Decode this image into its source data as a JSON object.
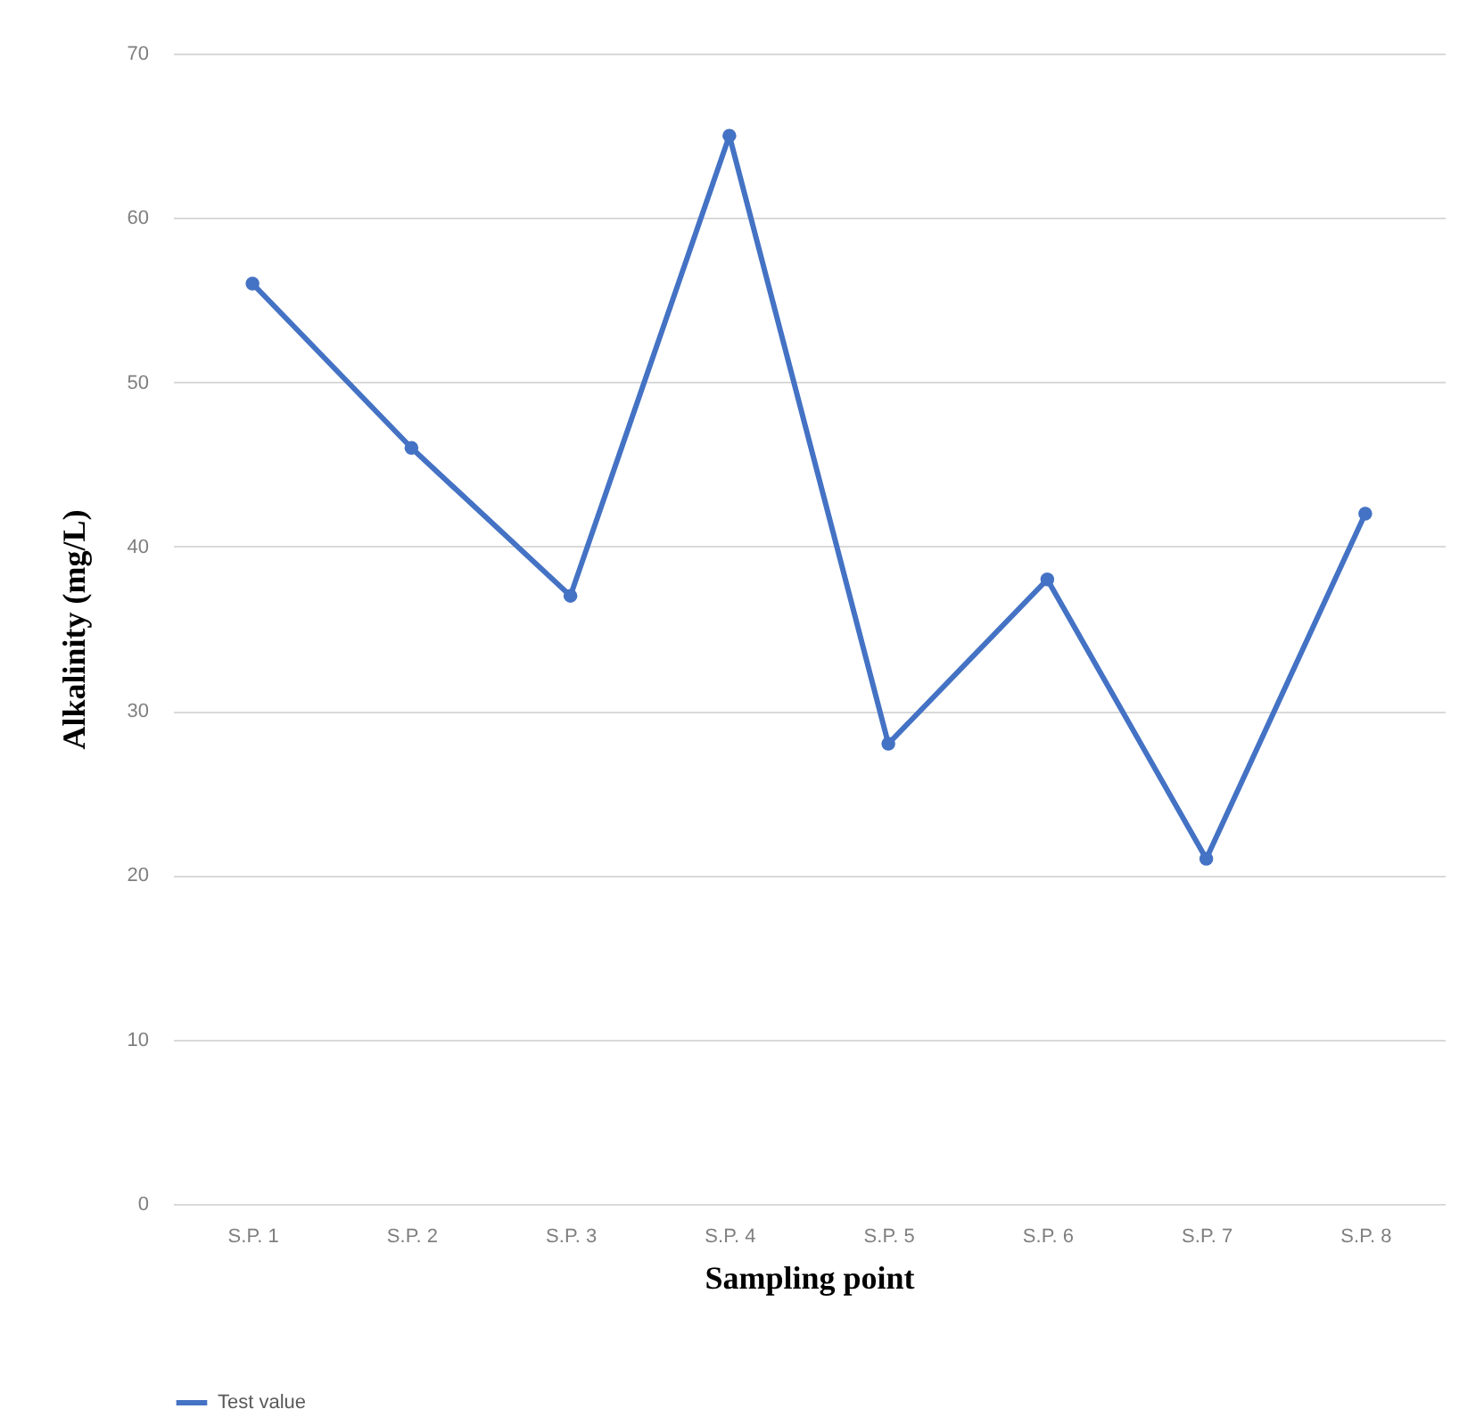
{
  "chart_data": {
    "type": "line",
    "xlabel": "Sampling point",
    "ylabel": "Alkalinity (mg/L)",
    "categories": [
      "S.P. 1",
      "S.P. 2",
      "S.P. 3",
      "S.P. 4",
      "S.P. 5",
      "S.P. 6",
      "S.P. 7",
      "S.P. 8"
    ],
    "series": [
      {
        "name": "Test value",
        "color": "#4472c4",
        "values": [
          56,
          46,
          37,
          65,
          28,
          38,
          21,
          42
        ]
      }
    ],
    "ylim": [
      0,
      70
    ],
    "yticks": [
      0,
      10,
      20,
      30,
      40,
      50,
      60,
      70
    ],
    "grid": "y",
    "legend": "bottom",
    "marker": "circle",
    "line_style": "solid"
  }
}
